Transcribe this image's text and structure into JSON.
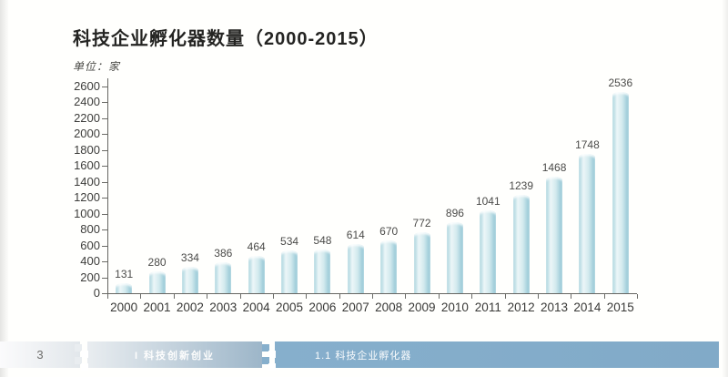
{
  "page": {
    "title": "科技企业孵化器数量（2000-2015）",
    "unit_label": "单位：家"
  },
  "chart_data": {
    "type": "bar",
    "title": "科技企业孵化器数量（2000-2015）",
    "unit": "单位：家",
    "categories": [
      "2000",
      "2001",
      "2002",
      "2003",
      "2004",
      "2005",
      "2006",
      "2007",
      "2008",
      "2009",
      "2010",
      "2011",
      "2012",
      "2013",
      "2014",
      "2015"
    ],
    "values": [
      131,
      280,
      334,
      386,
      464,
      534,
      548,
      614,
      670,
      772,
      896,
      1041,
      1239,
      1468,
      1748,
      2536
    ],
    "xlabel": "",
    "ylabel": "",
    "ylim": [
      0,
      2600
    ],
    "ytick_step": 200,
    "grid": false,
    "legend": null,
    "bar_gradient": [
      "#a6d2db",
      "#ecf6f8",
      "#d3eaee",
      "#8fc4d3"
    ],
    "axis_color": "#666662",
    "value_label_color": "#4b4b49"
  },
  "footer": {
    "page_number": "3",
    "section_label": "I 科技创新创业",
    "subsection_label": "1.1 科技企业孵化器",
    "page_seg_colors": [
      "#fbfbfc",
      "#e2e7eb"
    ],
    "section_seg_colors": [
      "#e9edf0",
      "#9db6c9"
    ],
    "subsection_seg_colors": [
      "#86afcc",
      "#81aac8"
    ]
  }
}
